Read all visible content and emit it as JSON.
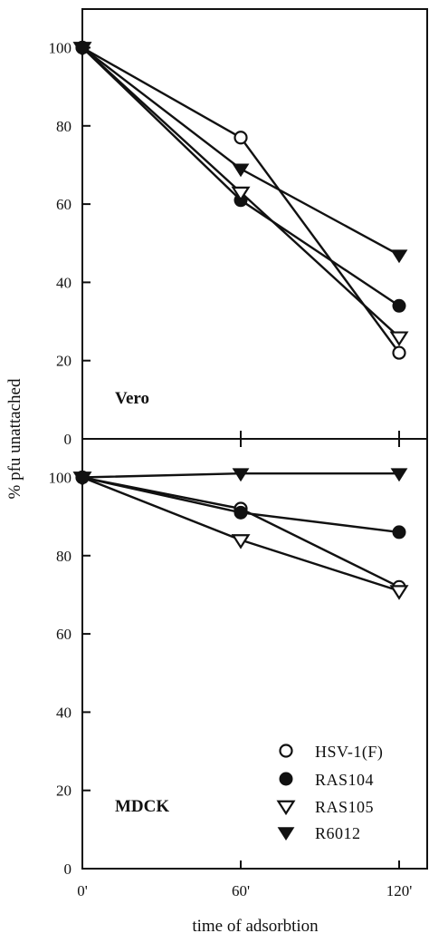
{
  "chart_data": {
    "type": "line",
    "xlabel": "time of adsorbtion",
    "ylabel": "% pfu unattached",
    "x_categories": [
      "0'",
      "60'",
      "120'"
    ],
    "x_values": [
      0,
      60,
      120
    ],
    "ylim": [
      0,
      110
    ],
    "yticks": [
      0,
      20,
      40,
      60,
      80,
      100
    ],
    "grid": false,
    "legend_placement": "bottom-right of lower panel",
    "legend": [
      {
        "name": "HSV-1(F)",
        "marker": "open-circle"
      },
      {
        "name": "RAS104",
        "marker": "filled-circle"
      },
      {
        "name": "RAS105",
        "marker": "open-triangle-down"
      },
      {
        "name": "R6012",
        "marker": "filled-triangle-down"
      }
    ],
    "panels": [
      {
        "label": "Vero",
        "series": [
          {
            "name": "HSV-1(F)",
            "values": [
              100,
              77,
              22
            ]
          },
          {
            "name": "RAS104",
            "values": [
              100,
              61,
              34
            ]
          },
          {
            "name": "RAS105",
            "values": [
              100,
              63,
              26
            ]
          },
          {
            "name": "R6012",
            "values": [
              100,
              69,
              47
            ]
          }
        ]
      },
      {
        "label": "MDCK",
        "series": [
          {
            "name": "HSV-1(F)",
            "values": [
              100,
              92,
              72
            ]
          },
          {
            "name": "RAS104",
            "values": [
              100,
              91,
              86
            ]
          },
          {
            "name": "RAS105",
            "values": [
              100,
              84,
              71
            ]
          },
          {
            "name": "R6012",
            "values": [
              100,
              101,
              101
            ]
          }
        ]
      }
    ]
  }
}
